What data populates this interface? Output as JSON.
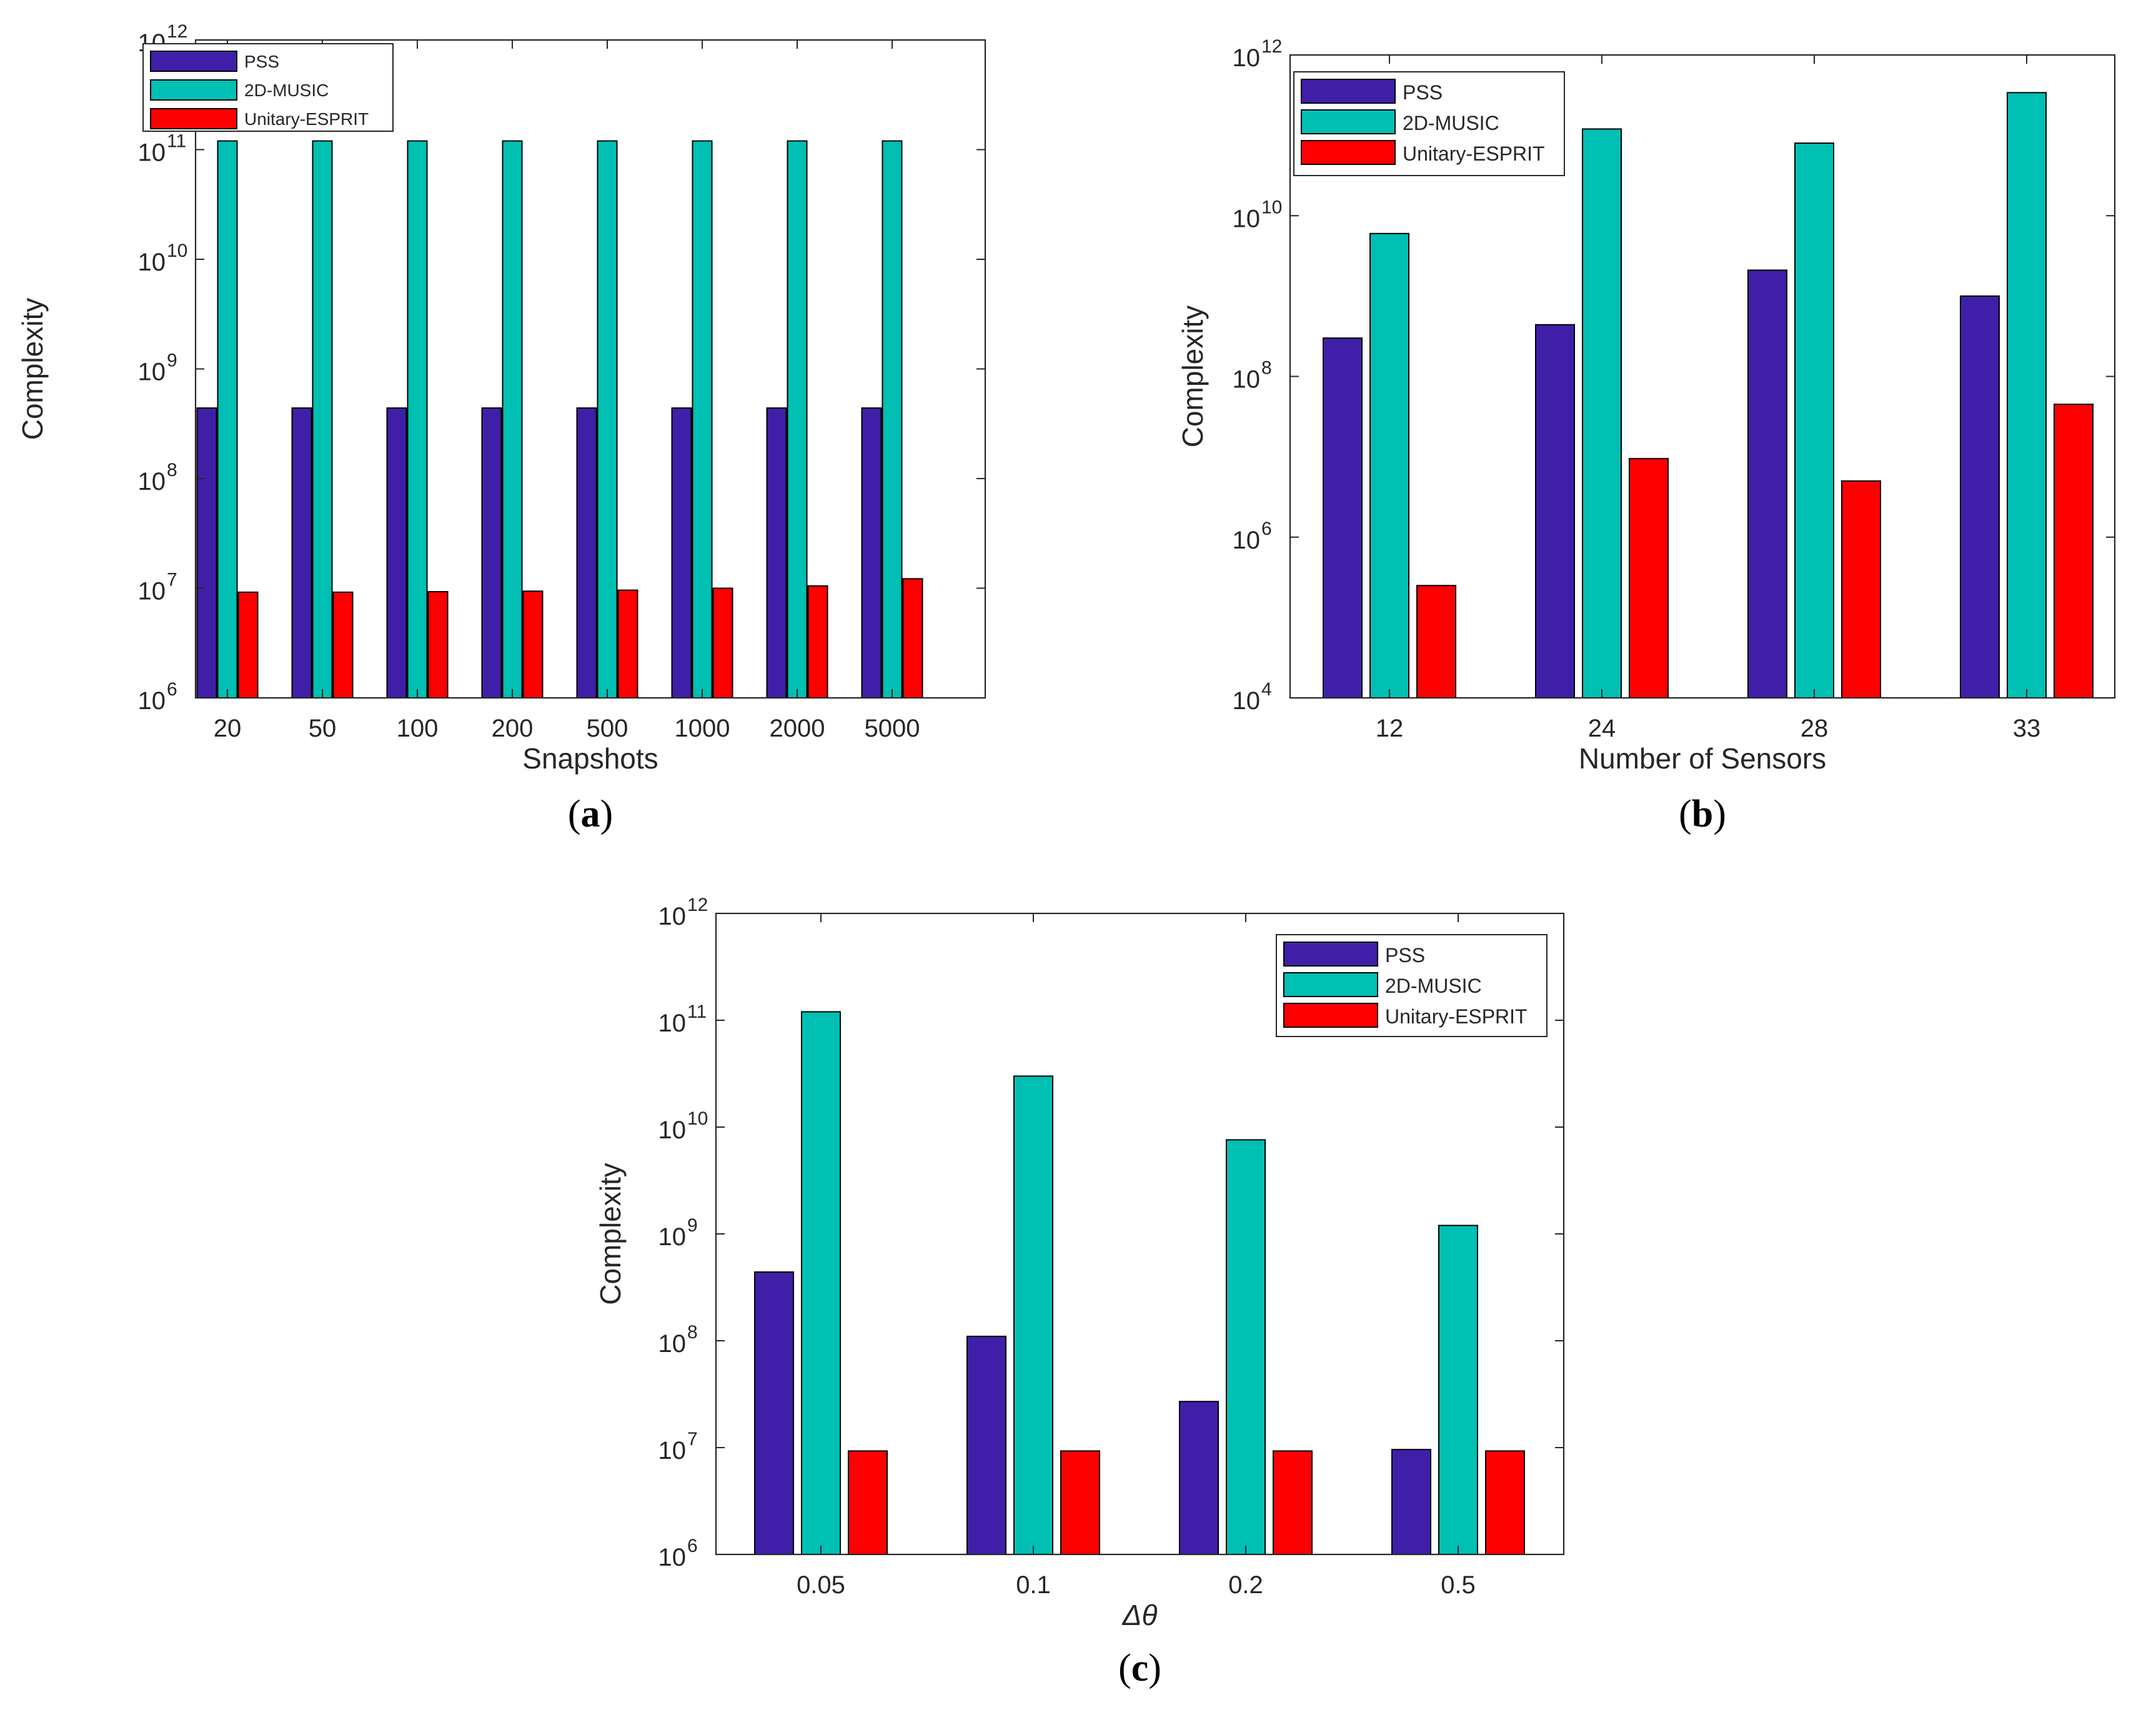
{
  "legend": {
    "series_names": [
      "PSS",
      "2D-MUSIC",
      "Unitary-ESPRIT"
    ],
    "colors": [
      "#3f1fa8",
      "#00bfb3",
      "#ff0000"
    ]
  },
  "chart_data": [
    {
      "type": "bar",
      "scale": "log",
      "panel_label": "a",
      "title": "",
      "xlabel": "Snapshots",
      "ylabel": "Complexity",
      "categories": [
        "20",
        "50",
        "100",
        "200",
        "500",
        "1000",
        "2000",
        "5000"
      ],
      "ylim_exponents": [
        6,
        12
      ],
      "tick_base": "10",
      "tick_exponents": [
        "6",
        "7",
        "8",
        "9",
        "10",
        "11",
        "12"
      ],
      "series": [
        {
          "name": "PSS",
          "color": "#3f1fa8",
          "values": [
            440000000.0,
            440000000.0,
            440000000.0,
            440000000.0,
            440000000.0,
            440000000.0,
            440000000.0,
            440000000.0
          ]
        },
        {
          "name": "2D-MUSIC",
          "color": "#00bfb3",
          "values": [
            120000000000.0,
            120000000000.0,
            120000000000.0,
            120000000000.0,
            120000000000.0,
            120000000000.0,
            120000000000.0,
            120000000000.0
          ]
        },
        {
          "name": "Unitary-ESPRIT",
          "color": "#ff0000",
          "values": [
            9200000.0,
            9200000.0,
            9300000.0,
            9400000.0,
            9600000.0,
            10000000.0,
            10500000.0,
            12200000.0
          ]
        }
      ]
    },
    {
      "type": "bar",
      "scale": "log",
      "panel_label": "b",
      "title": "",
      "xlabel": "Number of Sensors",
      "ylabel": "Complexity",
      "categories": [
        "12",
        "24",
        "28",
        "33"
      ],
      "ylim_exponents": [
        4,
        12
      ],
      "tick_base": "10",
      "tick_exponents": [
        "4",
        "6",
        "8",
        "10",
        "12"
      ],
      "series": [
        {
          "name": "PSS",
          "color": "#3f1fa8",
          "values": [
            300000000.0,
            440000000.0,
            2100000000.0,
            1000000000.0
          ]
        },
        {
          "name": "2D-MUSIC",
          "color": "#00bfb3",
          "values": [
            6000000000.0,
            120000000000.0,
            80000000000.0,
            340000000000.0
          ]
        },
        {
          "name": "Unitary-ESPRIT",
          "color": "#ff0000",
          "values": [
            250000.0,
            9500000.0,
            5000000.0,
            45000000.0
          ]
        }
      ]
    },
    {
      "type": "bar",
      "scale": "log",
      "panel_label": "c",
      "title": "",
      "xlabel": "Δθ",
      "ylabel": "Complexity",
      "categories": [
        "0.05",
        "0.1",
        "0.2",
        "0.5"
      ],
      "ylim_exponents": [
        6,
        12
      ],
      "tick_base": "10",
      "tick_exponents": [
        "6",
        "7",
        "8",
        "9",
        "10",
        "11",
        "12"
      ],
      "series": [
        {
          "name": "PSS",
          "color": "#3f1fa8",
          "values": [
            440000000.0,
            110000000.0,
            27000000.0,
            9600000.0
          ]
        },
        {
          "name": "2D-MUSIC",
          "color": "#00bfb3",
          "values": [
            120000000000.0,
            30000000000.0,
            7600000000.0,
            1200000000.0
          ]
        },
        {
          "name": "Unitary-ESPRIT",
          "color": "#ff0000",
          "values": [
            9300000.0,
            9300000.0,
            9300000.0,
            9300000.0
          ]
        }
      ]
    }
  ]
}
